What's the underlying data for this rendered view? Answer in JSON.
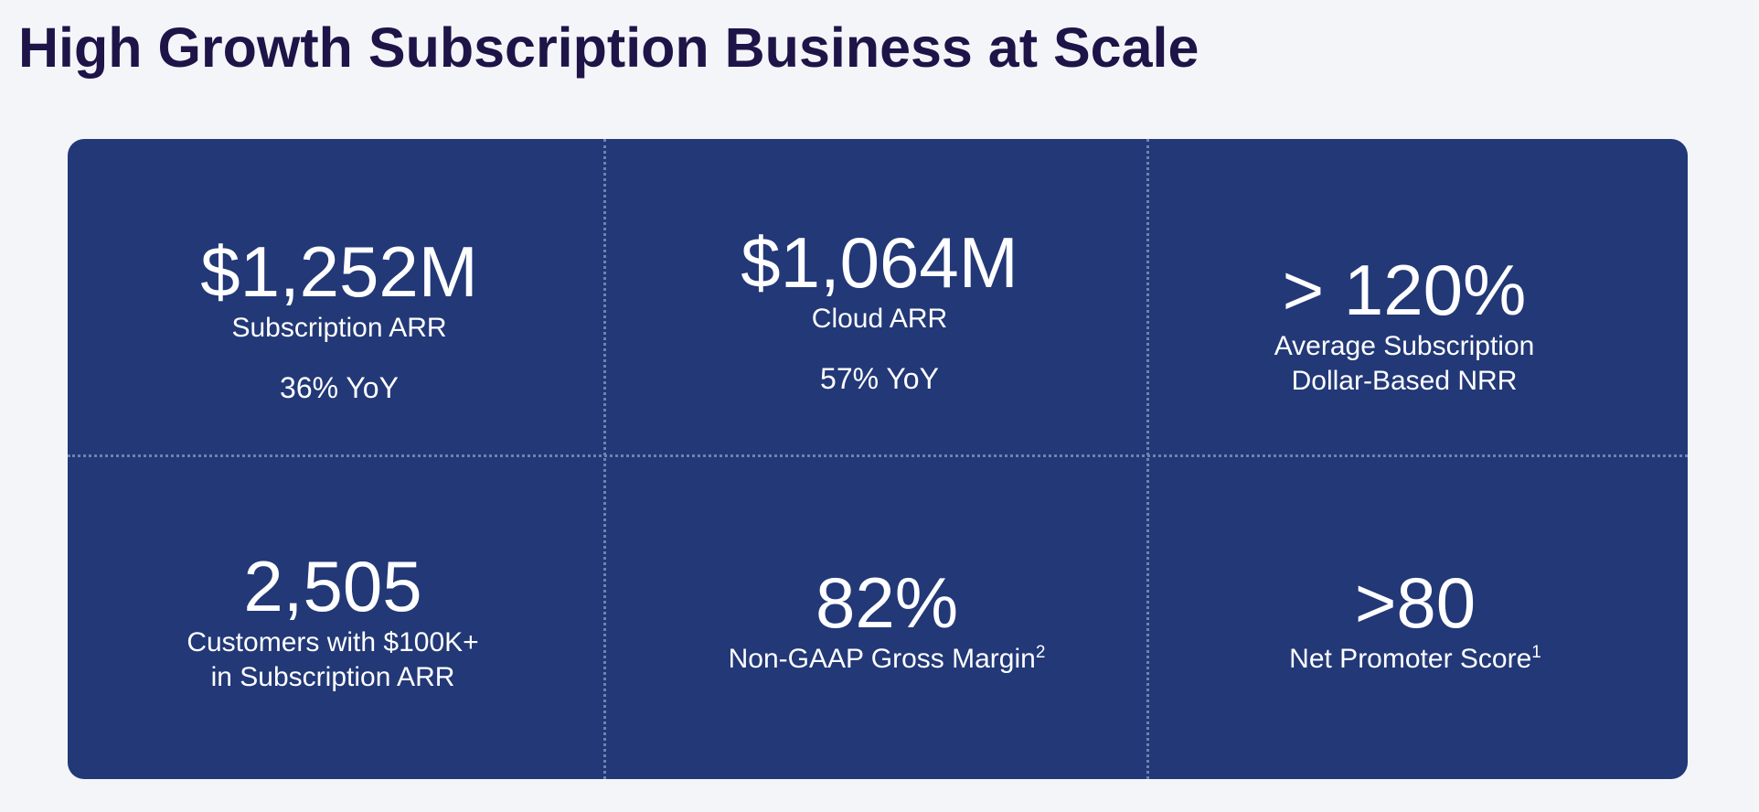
{
  "title": "High Growth Subscription Business at Scale",
  "colors": {
    "title": "#1e1448",
    "panel": "#223877",
    "text": "#ffffff",
    "divider": "#6f82b3",
    "background": "#f4f5f8"
  },
  "metrics": [
    {
      "value": "$1,252M",
      "label_line1": "Subscription ARR",
      "growth": "36% YoY"
    },
    {
      "value": "$1,064M",
      "label_line1": "Cloud ARR",
      "growth": "57% YoY"
    },
    {
      "value": "> 120%",
      "label_line1": "Average Subscription",
      "label_line2": "Dollar-Based NRR"
    },
    {
      "value": "2,505",
      "label_line1": "Customers with $100K+",
      "label_line2": "in Subscription ARR"
    },
    {
      "value": "82%",
      "label_line1": "Non-GAAP Gross Margin",
      "footnote": "2"
    },
    {
      "value": ">80",
      "label_line1": "Net Promoter Score",
      "footnote": "1"
    }
  ]
}
